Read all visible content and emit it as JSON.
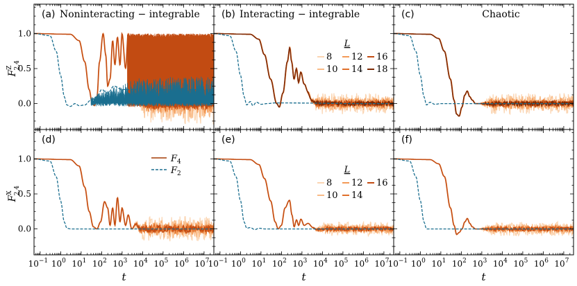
{
  "chart_data": {
    "type": "line",
    "xscale": "log",
    "xlim": [
      0.05,
      30000000
    ],
    "xlabel": "t",
    "x_ticks": [
      {
        "value": 0.1,
        "base": "10",
        "exp": "−1"
      },
      {
        "value": 1,
        "base": "10",
        "exp": "0"
      },
      {
        "value": 10,
        "base": "10",
        "exp": "1"
      },
      {
        "value": 100,
        "base": "10",
        "exp": "2"
      },
      {
        "value": 1000,
        "base": "10",
        "exp": "3"
      },
      {
        "value": 10000,
        "base": "10",
        "exp": "4"
      },
      {
        "value": 100000,
        "base": "10",
        "exp": "5"
      },
      {
        "value": 1000000,
        "base": "10",
        "exp": "6"
      },
      {
        "value": 10000000,
        "base": "10",
        "exp": "7"
      }
    ],
    "ylim": [
      -0.37,
      1.42
    ],
    "y_ticks": [
      {
        "value": 0.0,
        "label": "0.0"
      },
      {
        "value": 0.5,
        "label": "0.5"
      },
      {
        "value": 1.0,
        "label": "1.0"
      }
    ],
    "row_ylabels": [
      {
        "main": "F",
        "sup": "Z",
        "sub": "2,4"
      },
      {
        "main": "F",
        "sup": "X",
        "sub": "2,4"
      }
    ],
    "panels": [
      {
        "id": "a",
        "label": "(a)",
        "title": "Noninteracting − integrable",
        "row": 0,
        "col": 0,
        "case": "nonint"
      },
      {
        "id": "b",
        "label": "(b)",
        "title": "Interacting − integrable",
        "row": 0,
        "col": 1,
        "case": "int"
      },
      {
        "id": "c",
        "label": "(c)",
        "title": "Chaotic",
        "row": 0,
        "col": 2,
        "case": "chaotic"
      },
      {
        "id": "d",
        "label": "(d)",
        "title": "",
        "row": 1,
        "col": 0,
        "case": "nonint"
      },
      {
        "id": "e",
        "label": "(e)",
        "title": "",
        "row": 1,
        "col": 1,
        "case": "int"
      },
      {
        "id": "f",
        "label": "(f)",
        "title": "",
        "row": 1,
        "col": 2,
        "case": "chaotic"
      }
    ],
    "colors": {
      "F4": "#a33a05",
      "F2": "#1a6e8f",
      "L8": "#fbd5b2",
      "L10": "#f9ba86",
      "L12": "#f39a57",
      "L14": "#e06f2a",
      "L16": "#c24b12",
      "L18": "#7e2a05"
    },
    "legend_F": {
      "panel": "d",
      "entries": [
        {
          "main": "F",
          "sub": "4",
          "style": "solid",
          "color_key": "F4"
        },
        {
          "main": "F",
          "sub": "2",
          "style": "dashed",
          "color_key": "F2"
        }
      ]
    },
    "legend_L_top": {
      "panel": "b",
      "title": "L",
      "entries": [
        {
          "label": "8",
          "color_key": "L8"
        },
        {
          "label": "12",
          "color_key": "L12"
        },
        {
          "label": "16",
          "color_key": "L16"
        },
        {
          "label": "10",
          "color_key": "L10"
        },
        {
          "label": "14",
          "color_key": "L14"
        },
        {
          "label": "18",
          "color_key": "L18"
        }
      ]
    },
    "legend_L_bottom": {
      "panel": "e",
      "title": "L",
      "entries": [
        {
          "label": "8",
          "color_key": "L8"
        },
        {
          "label": "12",
          "color_key": "L12"
        },
        {
          "label": "16",
          "color_key": "L16"
        },
        {
          "label": "10",
          "color_key": "L10"
        },
        {
          "label": "14",
          "color_key": "L14"
        }
      ]
    },
    "series_F4": {
      "nonint": {
        "Z": [
          [
            0.05,
            1
          ],
          [
            3,
            0.99
          ],
          [
            8,
            0.9
          ],
          [
            15,
            0.6
          ],
          [
            25,
            0.2
          ],
          [
            35,
            0.0
          ],
          [
            45,
            -0.03
          ],
          [
            60,
            0.1
          ],
          [
            80,
            0.6
          ],
          [
            120,
            1.0
          ],
          [
            160,
            0.7
          ],
          [
            200,
            0.25
          ],
          [
            260,
            0.35
          ],
          [
            350,
            0.9
          ],
          [
            450,
            0.55
          ],
          [
            600,
            0.95
          ],
          [
            800,
            0.55
          ],
          [
            1000,
            1.0
          ],
          [
            1500,
            0.5
          ],
          [
            2000,
            1.0
          ],
          [
            3000,
            0.5
          ]
        ],
        "X": [
          [
            0.05,
            1
          ],
          [
            3,
            0.99
          ],
          [
            8,
            0.9
          ],
          [
            15,
            0.6
          ],
          [
            25,
            0.25
          ],
          [
            40,
            0.03
          ],
          [
            60,
            0.0
          ],
          [
            90,
            0.1
          ],
          [
            140,
            0.39
          ],
          [
            200,
            0.3
          ],
          [
            260,
            0.05
          ],
          [
            350,
            0.3
          ],
          [
            450,
            0.05
          ],
          [
            600,
            0.45
          ],
          [
            800,
            0.1
          ],
          [
            1000,
            0.3
          ],
          [
            1500,
            0.05
          ],
          [
            2000,
            0.2
          ],
          [
            3000,
            0.0
          ],
          [
            5000,
            0.1
          ],
          [
            8000,
            0.0
          ]
        ]
      },
      "int": {
        "Z": [
          [
            0.05,
            1
          ],
          [
            3,
            0.99
          ],
          [
            8,
            0.92
          ],
          [
            15,
            0.7
          ],
          [
            30,
            0.35
          ],
          [
            60,
            0.0
          ],
          [
            80,
            -0.05
          ],
          [
            120,
            0.15
          ],
          [
            200,
            0.6
          ],
          [
            260,
            0.8
          ],
          [
            320,
            0.6
          ],
          [
            420,
            0.35
          ],
          [
            550,
            0.5
          ],
          [
            700,
            0.3
          ],
          [
            900,
            0.45
          ],
          [
            1300,
            0.28
          ],
          [
            2000,
            0.2
          ],
          [
            3000,
            0.1
          ],
          [
            5000,
            0.05
          ],
          [
            10000,
            0.0
          ]
        ],
        "X": [
          [
            0.05,
            1
          ],
          [
            3,
            0.99
          ],
          [
            8,
            0.92
          ],
          [
            15,
            0.72
          ],
          [
            30,
            0.4
          ],
          [
            50,
            0.1
          ],
          [
            70,
            0.0
          ],
          [
            100,
            0.05
          ],
          [
            150,
            0.3
          ],
          [
            250,
            0.41
          ],
          [
            330,
            0.2
          ],
          [
            420,
            0.03
          ],
          [
            550,
            0.13
          ],
          [
            700,
            0.05
          ],
          [
            900,
            0.14
          ],
          [
            1300,
            0.05
          ],
          [
            2000,
            0.08
          ],
          [
            3500,
            0.02
          ],
          [
            6000,
            -0.02
          ],
          [
            10000,
            0.0
          ]
        ]
      },
      "chaotic": {
        "Z": [
          [
            0.05,
            1
          ],
          [
            3,
            0.99
          ],
          [
            8,
            0.93
          ],
          [
            15,
            0.75
          ],
          [
            30,
            0.35
          ],
          [
            45,
            0.05
          ],
          [
            60,
            -0.15
          ],
          [
            80,
            -0.18
          ],
          [
            110,
            -0.05
          ],
          [
            150,
            0.12
          ],
          [
            200,
            0.18
          ],
          [
            260,
            0.1
          ],
          [
            350,
            0.05
          ],
          [
            500,
            0.0
          ],
          [
            1000,
            0.0
          ]
        ],
        "X": [
          [
            0.05,
            1
          ],
          [
            3,
            0.99
          ],
          [
            8,
            0.93
          ],
          [
            15,
            0.75
          ],
          [
            30,
            0.3
          ],
          [
            45,
            0.05
          ],
          [
            60,
            -0.08
          ],
          [
            80,
            -0.05
          ],
          [
            110,
            0.0
          ],
          [
            150,
            0.1
          ],
          [
            200,
            0.15
          ],
          [
            260,
            0.08
          ],
          [
            350,
            0.03
          ],
          [
            500,
            0.0
          ],
          [
            1000,
            0.0
          ]
        ]
      }
    },
    "series_F2": {
      "nonint": {
        "Z": [
          [
            0.05,
            1
          ],
          [
            0.3,
            0.97
          ],
          [
            0.6,
            0.75
          ],
          [
            1,
            0.4
          ],
          [
            1.5,
            0.1
          ],
          [
            2,
            -0.02
          ],
          [
            3,
            -0.04
          ],
          [
            5,
            0.0
          ],
          [
            8,
            -0.03
          ],
          [
            15,
            -0.02
          ],
          [
            30,
            0.05
          ],
          [
            60,
            0.1
          ],
          [
            100,
            0.2
          ],
          [
            200,
            0.15
          ],
          [
            400,
            0.25
          ],
          [
            1000,
            0.2
          ]
        ],
        "X": [
          [
            0.05,
            1
          ],
          [
            0.3,
            0.97
          ],
          [
            0.6,
            0.75
          ],
          [
            1,
            0.4
          ],
          [
            1.5,
            0.1
          ],
          [
            2,
            0.01
          ],
          [
            3,
            0.0
          ],
          [
            1000000,
            0.0
          ]
        ]
      },
      "int": {
        "Z": [
          [
            0.05,
            1
          ],
          [
            0.3,
            0.97
          ],
          [
            0.6,
            0.75
          ],
          [
            1,
            0.4
          ],
          [
            1.5,
            0.1
          ],
          [
            2,
            -0.02
          ],
          [
            3,
            0.03
          ],
          [
            4,
            -0.03
          ],
          [
            6,
            0.02
          ],
          [
            10,
            -0.01
          ],
          [
            20,
            0.0
          ],
          [
            50,
            0.01
          ],
          [
            1000000,
            0.0
          ]
        ],
        "X": [
          [
            0.05,
            1
          ],
          [
            0.3,
            0.97
          ],
          [
            0.6,
            0.75
          ],
          [
            1,
            0.4
          ],
          [
            1.5,
            0.1
          ],
          [
            2,
            0.01
          ],
          [
            3,
            0.02
          ],
          [
            5,
            -0.01
          ],
          [
            8,
            0.01
          ],
          [
            15,
            0.0
          ],
          [
            1000000,
            0.0
          ]
        ]
      },
      "chaotic": {
        "Z": [
          [
            0.05,
            1
          ],
          [
            0.3,
            0.97
          ],
          [
            0.6,
            0.75
          ],
          [
            1,
            0.4
          ],
          [
            1.5,
            0.1
          ],
          [
            2,
            -0.02
          ],
          [
            3,
            0.02
          ],
          [
            5,
            -0.01
          ],
          [
            10,
            0.0
          ],
          [
            1000000,
            0.0
          ]
        ],
        "X": [
          [
            0.05,
            1
          ],
          [
            0.3,
            0.97
          ],
          [
            0.6,
            0.75
          ],
          [
            1,
            0.4
          ],
          [
            1.5,
            0.1
          ],
          [
            2,
            0.0
          ],
          [
            4,
            0.0
          ],
          [
            1000000,
            0.0
          ]
        ]
      }
    },
    "noise": {
      "nonint": {
        "Z": {
          "start": 3000,
          "amplitude": 0.3
        },
        "X": {
          "start": 3000,
          "amplitude": 0.18
        }
      },
      "int": {
        "Z": {
          "start": 1500,
          "amplitude": 0.15
        },
        "X": {
          "start": 3000,
          "amplitude": 0.1
        }
      },
      "chaotic": {
        "Z": {
          "start": 800,
          "amplitude": 0.15
        },
        "X": {
          "start": 800,
          "amplitude": 0.1
        }
      }
    }
  }
}
